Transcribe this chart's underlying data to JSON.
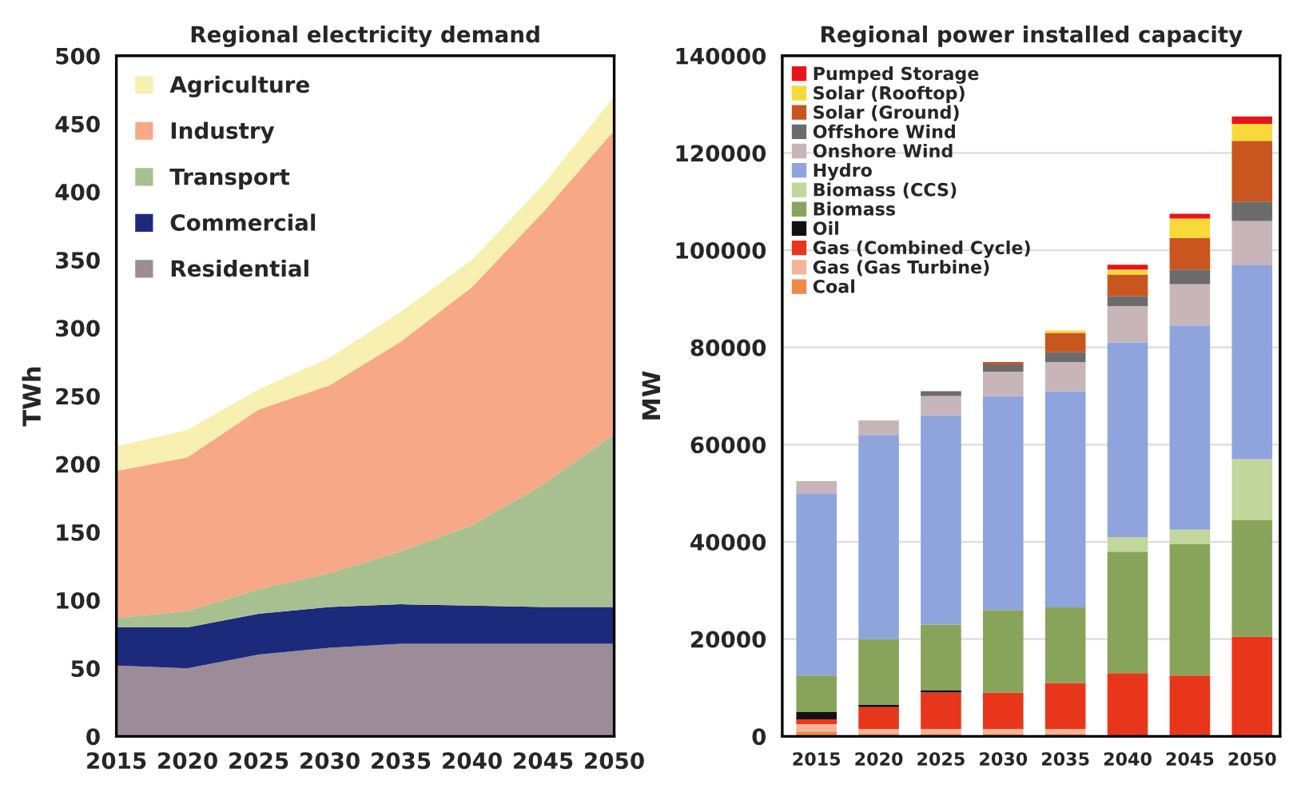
{
  "chart_data": [
    {
      "type": "area",
      "title": "Regional electricity demand",
      "ylabel": "TWh",
      "stacked": true,
      "legend": "top left",
      "grid": false,
      "x": [
        2015,
        2020,
        2025,
        2030,
        2035,
        2040,
        2045,
        2050
      ],
      "xlim": [
        2015,
        2050
      ],
      "xticks": [
        2015,
        2020,
        2025,
        2030,
        2035,
        2040,
        2045,
        2050
      ],
      "ylim": [
        0,
        500
      ],
      "yticks": [
        0,
        50,
        100,
        150,
        200,
        250,
        300,
        350,
        400,
        450,
        500
      ],
      "series": [
        {
          "name": "Residential",
          "color": "#9c8c98",
          "values": [
            52,
            50,
            60,
            65,
            68,
            68,
            68,
            68
          ]
        },
        {
          "name": "Commercial",
          "color": "#1b2a7a",
          "values": [
            28,
            30,
            30,
            30,
            29,
            28,
            27,
            27
          ]
        },
        {
          "name": "Transport",
          "color": "#a8c090",
          "values": [
            7,
            12,
            18,
            25,
            39,
            59,
            90,
            127
          ]
        },
        {
          "name": "Industry",
          "color": "#f7a886",
          "values": [
            108,
            113,
            132,
            138,
            154,
            175,
            200,
            223
          ]
        },
        {
          "name": "Agriculture",
          "color": "#f8f0b0",
          "values": [
            18,
            20,
            15,
            20,
            22,
            20,
            20,
            25
          ]
        }
      ]
    },
    {
      "type": "bar",
      "title": "Regional power installed capacity",
      "ylabel": "MW",
      "stacked": true,
      "legend": "top left",
      "grid": "y",
      "categories": [
        "2015",
        "2020",
        "2025",
        "2030",
        "2035",
        "2040",
        "2045",
        "2050"
      ],
      "ylim": [
        0,
        140000
      ],
      "yticks": [
        0,
        20000,
        40000,
        60000,
        80000,
        100000,
        120000,
        140000
      ],
      "series": [
        {
          "name": "Coal",
          "color": "#f0884a",
          "values": [
            1000,
            500,
            500,
            500,
            500,
            0,
            0,
            0
          ]
        },
        {
          "name": "Gas (Gas Turbine)",
          "color": "#f5b49a",
          "values": [
            1500,
            1000,
            1000,
            1000,
            1000,
            0,
            0,
            0
          ]
        },
        {
          "name": "Gas (Combined Cycle)",
          "color": "#e8361a",
          "values": [
            1000,
            4500,
            7500,
            7500,
            9500,
            13000,
            12500,
            20500
          ]
        },
        {
          "name": "Oil",
          "color": "#111111",
          "values": [
            1500,
            500,
            500,
            0,
            0,
            0,
            0,
            0
          ]
        },
        {
          "name": "Biomass",
          "color": "#88a45a",
          "values": [
            7500,
            13500,
            13500,
            17000,
            15500,
            25000,
            27000,
            24000
          ]
        },
        {
          "name": "Biomass (CCS)",
          "color": "#c3d69b",
          "values": [
            0,
            0,
            0,
            0,
            0,
            3000,
            3000,
            12500
          ]
        },
        {
          "name": "Hydro",
          "color": "#8fa4dc",
          "values": [
            37500,
            42000,
            43000,
            44000,
            44500,
            40000,
            42000,
            40000
          ]
        },
        {
          "name": "Onshore Wind",
          "color": "#c7b5ba",
          "values": [
            2500,
            3000,
            4000,
            5000,
            6000,
            7500,
            8500,
            9000
          ]
        },
        {
          "name": "Offshore Wind",
          "color": "#6b6b6b",
          "values": [
            0,
            0,
            1000,
            1500,
            2000,
            2000,
            3000,
            4000
          ]
        },
        {
          "name": "Solar (Ground)",
          "color": "#c8561e",
          "values": [
            0,
            0,
            0,
            500,
            4000,
            4500,
            6500,
            12500
          ]
        },
        {
          "name": "Solar (Rooftop)",
          "color": "#f7d93a",
          "values": [
            0,
            0,
            0,
            0,
            500,
            1000,
            4000,
            3500
          ]
        },
        {
          "name": "Pumped Storage",
          "color": "#e8141c",
          "values": [
            0,
            0,
            0,
            0,
            0,
            1000,
            1000,
            1500
          ]
        }
      ]
    }
  ]
}
